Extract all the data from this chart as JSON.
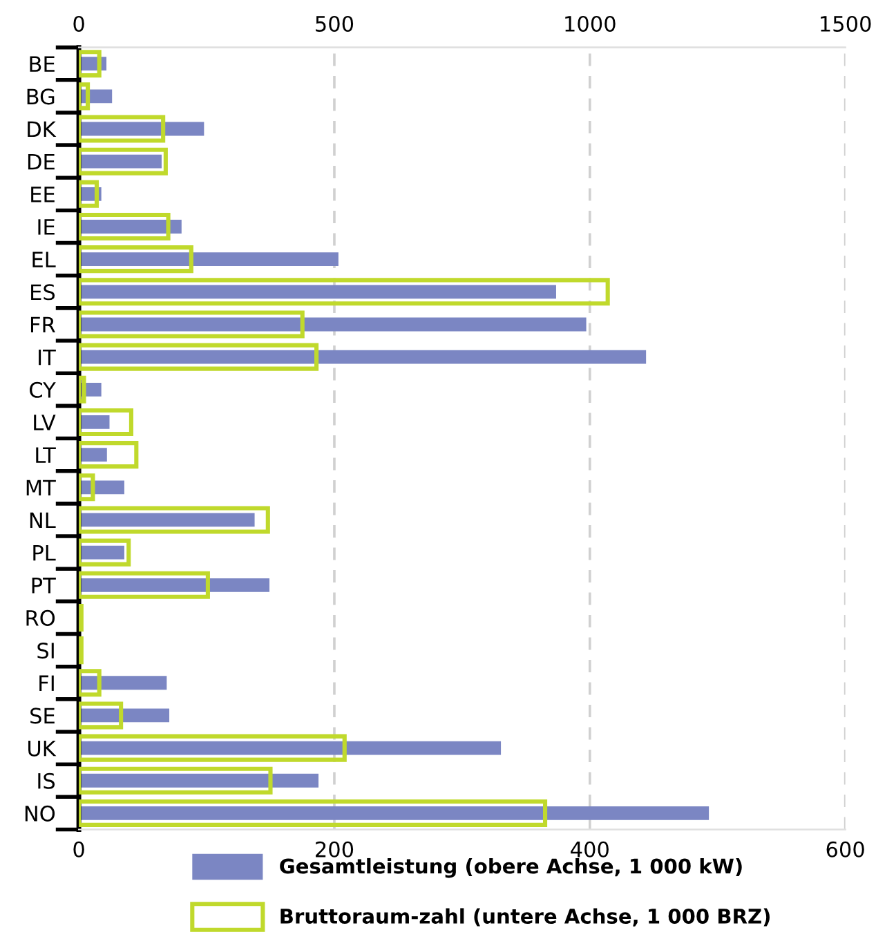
{
  "chart_data": {
    "type": "bar",
    "orientation": "horizontal",
    "categories": [
      "BE",
      "BG",
      "DK",
      "DE",
      "EE",
      "IE",
      "EL",
      "ES",
      "FR",
      "IT",
      "CY",
      "LV",
      "LT",
      "MT",
      "NL",
      "PL",
      "PT",
      "RO",
      "SI",
      "FI",
      "SE",
      "UK",
      "IS",
      "NO"
    ],
    "series": [
      {
        "name": "Gesamtleistung (obere Achse, 1 000 kW)",
        "color": "#7b86c3",
        "axis": "x2",
        "values": [
          54,
          65,
          245,
          162,
          44,
          201,
          508,
          934,
          993,
          1110,
          44,
          60,
          55,
          89,
          344,
          89,
          373,
          0,
          0,
          172,
          177,
          826,
          469,
          1233
        ]
      },
      {
        "name": "Bruttoraum-zahl (untere Achse, 1 000 BRZ)",
        "color": "#c0d92c",
        "values": [
          16,
          7,
          66,
          68,
          14,
          70,
          88,
          414,
          175,
          186,
          4,
          41,
          45,
          11,
          148,
          39,
          101,
          2,
          2,
          16,
          33,
          208,
          150,
          365
        ]
      }
    ],
    "xlim": [
      0,
      600
    ],
    "xticks": [
      0,
      200,
      400,
      600
    ],
    "x2lim": [
      0,
      1500
    ],
    "x2ticks": [
      0,
      500,
      1000,
      1500
    ],
    "grid": "x",
    "legend": "bottom"
  }
}
